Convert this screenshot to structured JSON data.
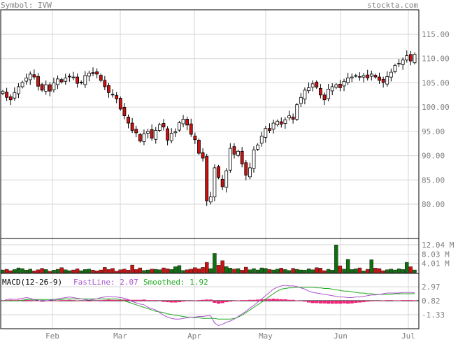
{
  "header": {
    "symbol_label": "Symbol: IVW",
    "site": "stockta.com"
  },
  "colors": {
    "up": "#ffffff",
    "down": "#cc1111",
    "vol_up": "#107010",
    "vol_down": "#cc1111",
    "fast": "#aa55cc",
    "smooth": "#22aa22",
    "hist": "#ee2277",
    "text": "#808080",
    "grid": "#d6d6d6"
  },
  "chart_data": [
    {
      "type": "candlestick",
      "title": "Symbol: IVW",
      "x_tick_labels": [
        "Feb",
        "Mar",
        "Apr",
        "May",
        "Jun",
        "Jul"
      ],
      "y_tick_labels": [
        "115.00",
        "110.00",
        "105.00",
        "100.00",
        "95.00",
        "90.00",
        "85.00",
        "80.00"
      ],
      "ylim": [
        74.5,
        119
      ],
      "grid": true,
      "closes": [
        103.2,
        102.0,
        101.5,
        103.0,
        104.2,
        105.1,
        106.0,
        106.8,
        106.2,
        104.3,
        103.5,
        104.6,
        103.3,
        105.0,
        105.8,
        105.2,
        106.0,
        106.3,
        106.2,
        104.9,
        105.0,
        106.5,
        107.0,
        106.9,
        106.8,
        105.5,
        104.2,
        103.0,
        102.5,
        101.7,
        99.6,
        98.2,
        96.7,
        95.2,
        94.7,
        93.0,
        94.5,
        95.0,
        93.6,
        95.2,
        96.4,
        95.9,
        93.2,
        94.6,
        94.9,
        96.8,
        97.5,
        96.3,
        94.4,
        93.3,
        90.5,
        89.5,
        80.7,
        81.5,
        87.5,
        85.5,
        83.6,
        86.9,
        91.5,
        90.3,
        90.9,
        88.3,
        86.0,
        87.5,
        91.2,
        92.2,
        94.0,
        95.6,
        95.2,
        96.7,
        97.1,
        96.5,
        97.4,
        98.2,
        97.5,
        100.5,
        102.0,
        103.5,
        104.0,
        104.8,
        104.1,
        102.5,
        101.5,
        103.7,
        104.2,
        104.6,
        104.0,
        105.3,
        106.0,
        106.2,
        106.5,
        106.3,
        106.5,
        106.0,
        106.8,
        106.2,
        105.5,
        105.1,
        106.3,
        107.2,
        108.6,
        109.0,
        109.7,
        110.6,
        109.5,
        110.9
      ],
      "volume_tick_labels": [
        "12.04 M",
        "8.03 M",
        "4.01 M"
      ],
      "volumes": [
        1.2,
        1.5,
        0.9,
        1.4,
        2.1,
        1.8,
        1.1,
        1.6,
        0.8,
        1.3,
        1.9,
        1.4,
        0.7,
        1.1,
        1.5,
        2.2,
        1.3,
        0.9,
        1.2,
        1.7,
        0.9,
        1.4,
        1.6,
        1.1,
        0.8,
        1.2,
        2.3,
        1.4,
        1.9,
        0.7,
        1.3,
        1.6,
        1.1,
        3.3,
        1.4,
        2.1,
        1.0,
        1.2,
        1.6,
        1.5,
        1.3,
        2.1,
        1.7,
        1.4,
        2.6,
        3.1,
        1.0,
        1.3,
        1.6,
        2.2,
        1.7,
        2.3,
        4.5,
        1.8,
        8.3,
        3.2,
        5.2,
        2.7,
        2.0,
        1.6,
        1.8,
        1.1,
        2.4,
        1.3,
        1.8,
        1.2,
        2.1,
        1.9,
        1.4,
        1.2,
        1.6,
        2.0,
        1.4,
        1.0,
        1.9,
        1.5,
        1.2,
        1.1,
        1.7,
        1.3,
        2.2,
        2.0,
        0.9,
        1.5,
        1.1,
        12.0,
        3.0,
        1.6,
        5.8,
        1.4,
        1.7,
        2.1,
        0.8,
        1.5,
        5.6,
        2.0,
        1.8,
        0.9,
        1.3,
        1.6,
        1.2,
        1.7,
        1.4,
        4.5,
        2.6,
        1.2
      ],
      "macd": {
        "label": "MACD(12-26-9)",
        "fast_label": "FastLine: 2.07",
        "smoothed_label": "Smoothed: 1.92",
        "tick_labels": [
          "2.97",
          "0.82",
          "-1.33"
        ],
        "fast": [
          0.8,
          1.0,
          1.1,
          1.0,
          1.1,
          1.2,
          1.3,
          1.2,
          1.0,
          0.9,
          0.7,
          0.8,
          0.9,
          1.0,
          1.1,
          1.2,
          1.3,
          1.4,
          1.3,
          1.2,
          1.1,
          1.0,
          0.9,
          1.0,
          1.1,
          1.3,
          1.4,
          1.5,
          1.4,
          1.4,
          1.3,
          1.2,
          1.0,
          0.7,
          0.5,
          0.3,
          0.2,
          -0.2,
          -0.4,
          -0.6,
          -1.0,
          -1.4,
          -1.7,
          -1.9,
          -2.0,
          -2.0,
          -1.9,
          -1.8,
          -1.7,
          -1.7,
          -1.6,
          -1.6,
          -1.5,
          -1.5,
          -2.6,
          -3.0,
          -2.8,
          -2.5,
          -2.3,
          -2.0,
          -1.6,
          -1.2,
          -0.8,
          -0.3,
          0.1,
          0.6,
          1.1,
          1.6,
          2.1,
          2.6,
          2.9,
          3.1,
          3.2,
          3.1,
          3.1,
          3.0,
          2.8,
          2.6,
          2.3,
          2.1,
          2.0,
          1.9,
          1.8,
          1.7,
          1.6,
          1.5,
          1.4,
          1.4,
          1.3,
          1.3,
          1.4,
          1.4,
          1.5,
          1.6,
          1.7,
          1.7,
          1.8,
          1.9,
          2.0,
          2.0,
          2.0,
          2.0,
          2.1,
          2.1,
          2.1,
          2.07
        ],
        "smoothed": [
          0.8,
          0.8,
          0.8,
          0.8,
          0.8,
          0.9,
          1.0,
          1.0,
          1.0,
          1.0,
          1.0,
          1.0,
          1.0,
          1.0,
          1.0,
          1.0,
          1.1,
          1.1,
          1.1,
          1.1,
          1.1,
          1.1,
          1.1,
          1.1,
          1.1,
          1.1,
          1.1,
          1.1,
          1.1,
          1.1,
          1.0,
          0.8,
          0.6,
          0.4,
          0.2,
          0.0,
          -0.2,
          -0.4,
          -0.6,
          -0.8,
          -0.9,
          -1.0,
          -1.2,
          -1.3,
          -1.4,
          -1.5,
          -1.6,
          -1.7,
          -1.7,
          -1.8,
          -1.8,
          -1.9,
          -1.9,
          -1.9,
          -1.9,
          -2.0,
          -2.0,
          -2.0,
          -2.0,
          -1.9,
          -1.7,
          -1.4,
          -1.0,
          -0.6,
          -0.2,
          0.2,
          0.6,
          1.0,
          1.5,
          1.9,
          2.3,
          2.6,
          2.7,
          2.8,
          2.8,
          2.9,
          2.9,
          2.9,
          2.9,
          2.9,
          2.8,
          2.8,
          2.7,
          2.7,
          2.6,
          2.5,
          2.4,
          2.3,
          2.3,
          2.2,
          2.1,
          2.0,
          2.0,
          1.9,
          1.9,
          1.8,
          1.8,
          1.8,
          1.8,
          1.8,
          1.9,
          1.9,
          1.9,
          1.9,
          1.9,
          1.92
        ]
      }
    }
  ]
}
